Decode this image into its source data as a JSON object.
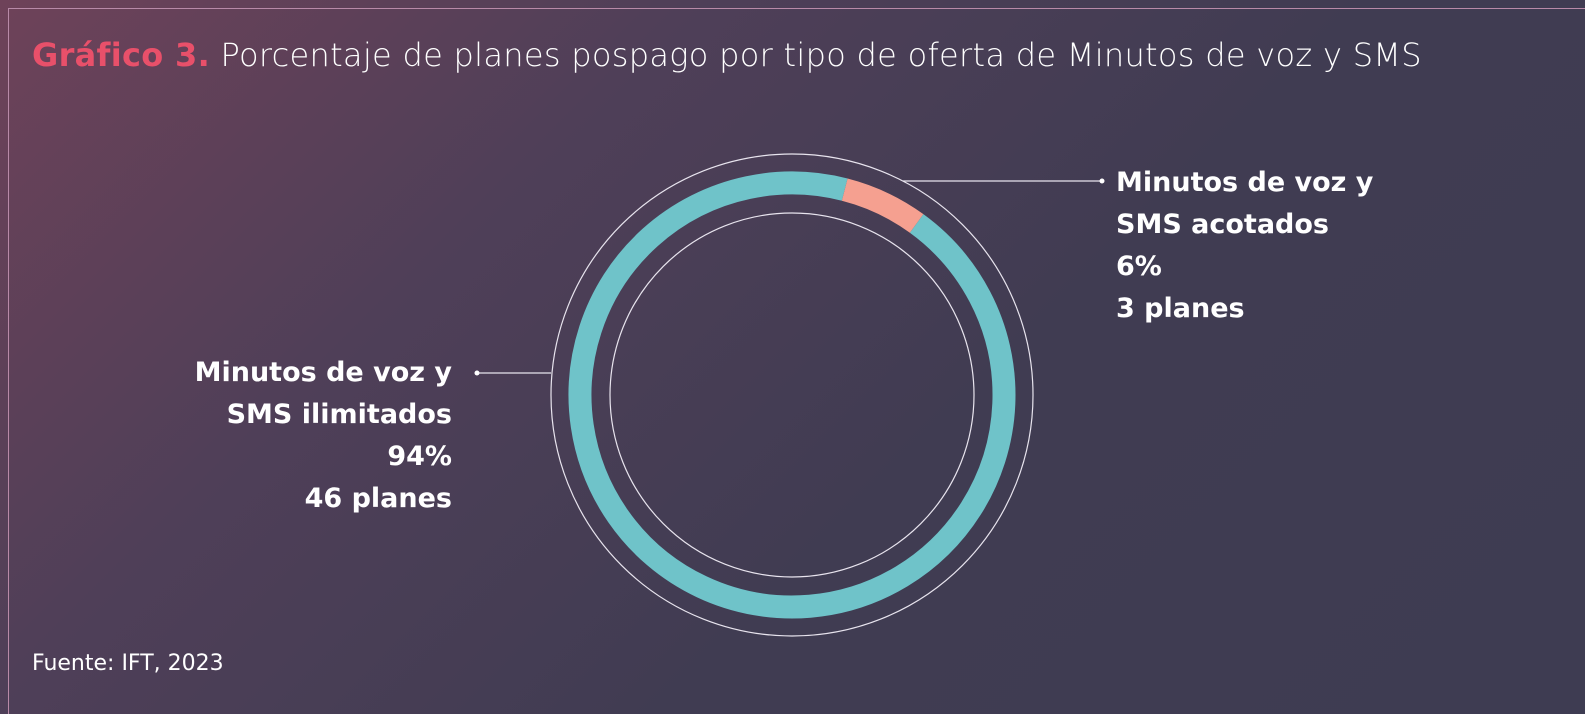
{
  "chart_data": {
    "type": "donut",
    "title_prefix": "Gráfico 3.",
    "title": "Porcentaje de planes pospago por tipo de oferta de Minutos de voz y SMS",
    "categories": [
      "Minutos de voz y SMS ilimitados",
      "Minutos de voz y SMS acotados"
    ],
    "values": [
      94,
      6
    ],
    "value_labels": [
      "94%",
      "6%"
    ],
    "plan_labels": [
      "46 planes",
      "3 planes"
    ],
    "colors": [
      "#6fc3c9",
      "#f5a090"
    ],
    "source": "Fuente: IFT, 2023"
  }
}
